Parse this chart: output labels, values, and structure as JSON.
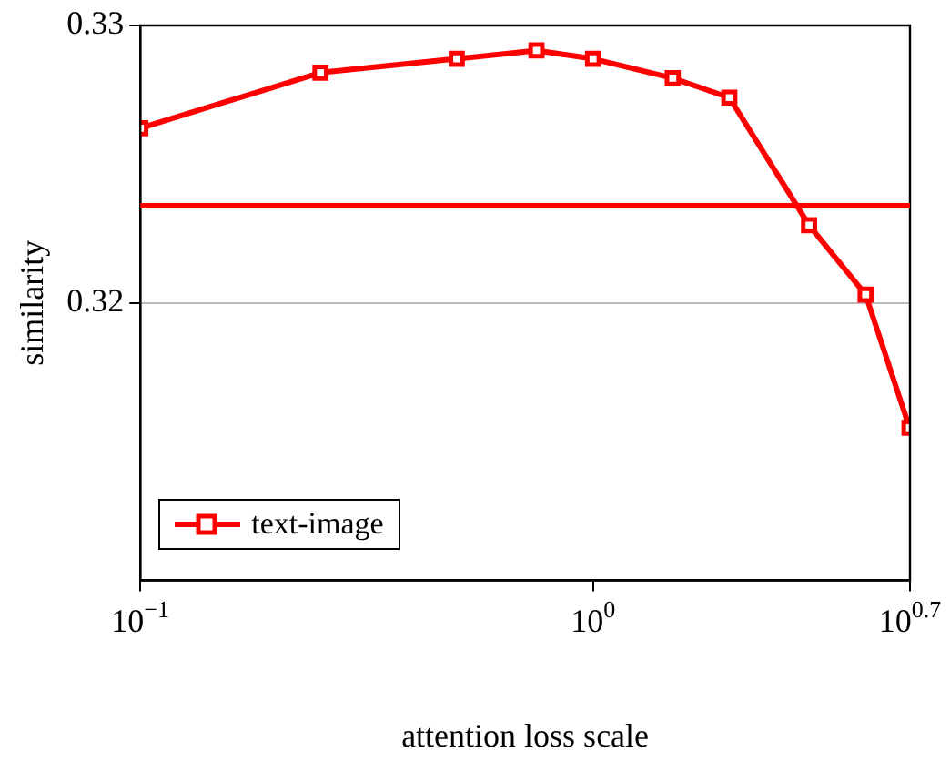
{
  "chart_data": {
    "type": "line",
    "xlabel": "attention loss scale",
    "ylabel": "similarity",
    "x": [
      0.1,
      0.25,
      0.5,
      0.75,
      1,
      1.5,
      2,
      3,
      4,
      5
    ],
    "series": [
      {
        "name": "text-image",
        "color": "#ff0000",
        "values": [
          0.3263,
          0.3283,
          0.3288,
          0.3291,
          0.3288,
          0.3281,
          0.3274,
          0.3228,
          0.3203,
          0.3155
        ]
      }
    ],
    "log": "x",
    "xlim": [
      0.1,
      5.012
    ],
    "xticks": [
      {
        "value": 0.1,
        "label": "10$^{−1}$"
      },
      {
        "value": 1,
        "label": "10$^{0}$"
      },
      {
        "value": 5.012,
        "label": "10$^{0.7}$"
      }
    ],
    "ylim": [
      0.31,
      0.33
    ],
    "yticks": [
      0.32,
      0.33
    ],
    "ref_lines": [
      {
        "axis": "y",
        "value": 0.3235,
        "color": "#ff0000"
      }
    ],
    "grid": "y",
    "legend": "bottom left",
    "marker": "square",
    "line_style": "solid"
  }
}
